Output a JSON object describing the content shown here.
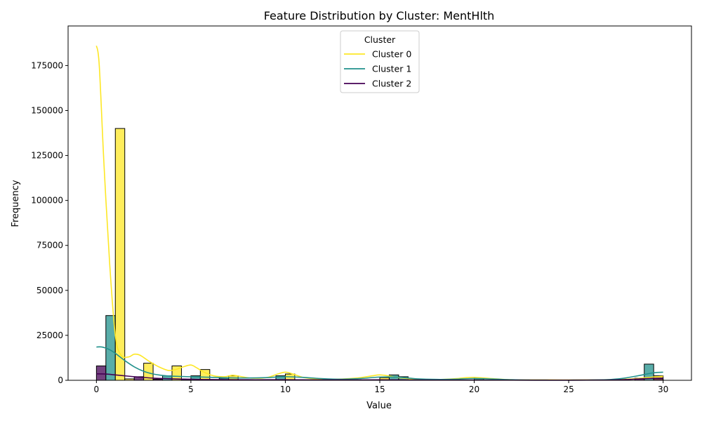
{
  "chart_data": {
    "type": "bar",
    "title": "Feature Distribution by Cluster: MentHlth",
    "xlabel": "Value",
    "ylabel": "Frequency",
    "xlim": [
      -1.5,
      31.5
    ],
    "ylim": [
      0,
      197000
    ],
    "xticks": [
      0,
      5,
      10,
      15,
      20,
      25,
      30
    ],
    "yticks": [
      0,
      25000,
      50000,
      75000,
      100000,
      125000,
      150000,
      175000
    ],
    "grid": false,
    "legend": {
      "title": "Cluster",
      "placement": "top-center",
      "entries": [
        "Cluster 0",
        "Cluster 1",
        "Cluster 2"
      ]
    },
    "colors": {
      "Cluster 0": "#fde725",
      "Cluster 1": "#21918c",
      "Cluster 2": "#440154"
    },
    "bars": [
      {
        "series": "Cluster 2",
        "x0": 0.0,
        "x1": 0.5,
        "value": 8000
      },
      {
        "series": "Cluster 1",
        "x0": 0.5,
        "x1": 1.0,
        "value": 36000
      },
      {
        "series": "Cluster 0",
        "x0": 1.0,
        "x1": 1.5,
        "value": 140000
      },
      {
        "series": "Cluster 0",
        "x0": 1.5,
        "x1": 2.0,
        "value": 800
      },
      {
        "series": "Cluster 2",
        "x0": 2.0,
        "x1": 2.5,
        "value": 2000
      },
      {
        "series": "Cluster 0",
        "x0": 2.5,
        "x1": 3.0,
        "value": 9500
      },
      {
        "series": "Cluster 2",
        "x0": 3.0,
        "x1": 3.5,
        "value": 600
      },
      {
        "series": "Cluster 1",
        "x0": 3.5,
        "x1": 4.0,
        "value": 2500
      },
      {
        "series": "Cluster 0",
        "x0": 4.0,
        "x1": 4.5,
        "value": 8000
      },
      {
        "series": "Cluster 2",
        "x0": 4.5,
        "x1": 5.0,
        "value": 500
      },
      {
        "series": "Cluster 1",
        "x0": 5.0,
        "x1": 5.5,
        "value": 2500
      },
      {
        "series": "Cluster 0",
        "x0": 5.5,
        "x1": 6.0,
        "value": 6000
      },
      {
        "series": "Cluster 2",
        "x0": 6.0,
        "x1": 6.5,
        "value": 400
      },
      {
        "series": "Cluster 1",
        "x0": 6.5,
        "x1": 7.0,
        "value": 1200
      },
      {
        "series": "Cluster 0",
        "x0": 7.0,
        "x1": 7.5,
        "value": 2500
      },
      {
        "series": "Cluster 1",
        "x0": 9.5,
        "x1": 10.0,
        "value": 2500
      },
      {
        "series": "Cluster 0",
        "x0": 10.0,
        "x1": 10.5,
        "value": 3500
      },
      {
        "series": "Cluster 2",
        "x0": 10.5,
        "x1": 11.0,
        "value": 300
      },
      {
        "series": "Cluster 0",
        "x0": 15.0,
        "x1": 15.5,
        "value": 1500
      },
      {
        "series": "Cluster 1",
        "x0": 15.5,
        "x1": 16.0,
        "value": 3000
      },
      {
        "series": "Cluster 1",
        "x0": 16.0,
        "x1": 16.5,
        "value": 2000
      },
      {
        "series": "Cluster 0",
        "x0": 20.0,
        "x1": 20.5,
        "value": 1200
      },
      {
        "series": "Cluster 1",
        "x0": 20.0,
        "x1": 20.5,
        "value": 1000
      },
      {
        "series": "Cluster 2",
        "x0": 28.5,
        "x1": 29.0,
        "value": 1200
      },
      {
        "series": "Cluster 1",
        "x0": 29.0,
        "x1": 29.5,
        "value": 9000
      },
      {
        "series": "Cluster 0",
        "x0": 29.5,
        "x1": 30.0,
        "value": 2500
      },
      {
        "series": "Cluster 2",
        "x0": 29.5,
        "x1": 30.0,
        "value": 1000
      }
    ],
    "kde_series": [
      {
        "name": "Cluster 0",
        "x": [
          0,
          0.15,
          0.4,
          0.7,
          1.0,
          1.3,
          1.7,
          2.0,
          2.3,
          2.8,
          3.3,
          3.8,
          4.2,
          4.6,
          5.0,
          5.3,
          5.7,
          6.2,
          6.8,
          7.2,
          7.6,
          8.2,
          9.0,
          9.6,
          10.0,
          10.4,
          11.0,
          12.0,
          13.0,
          14.0,
          14.6,
          15.0,
          15.5,
          16.0,
          17.0,
          18.0,
          19.0,
          19.6,
          20.0,
          20.5,
          21.0,
          22.0,
          24.0,
          26.0,
          27.5,
          28.5,
          29.2,
          29.7,
          30.0
        ],
        "y": [
          186000,
          175000,
          120000,
          65000,
          25000,
          14000,
          13000,
          14500,
          14000,
          10500,
          7500,
          5500,
          6000,
          7500,
          8500,
          7000,
          4500,
          2500,
          2000,
          2800,
          2200,
          1200,
          1500,
          3500,
          4500,
          3500,
          1500,
          600,
          700,
          1500,
          2500,
          3000,
          2400,
          1500,
          500,
          400,
          900,
          1500,
          1600,
          1300,
          900,
          300,
          200,
          200,
          400,
          900,
          1600,
          2000,
          2200
        ]
      },
      {
        "name": "Cluster 1",
        "x": [
          0,
          0.3,
          0.7,
          1.0,
          1.5,
          2.0,
          2.5,
          3.0,
          3.5,
          4.0,
          5.0,
          6.0,
          7.0,
          8.0,
          9.0,
          10.0,
          11.0,
          12.0,
          13.0,
          14.0,
          15.0,
          16.0,
          17.0,
          18.0,
          19.0,
          20.0,
          21.0,
          22.0,
          23.0,
          24.0,
          25.0,
          26.0,
          27.0,
          27.5,
          28.0,
          28.5,
          29.0,
          29.5,
          30.0
        ],
        "y": [
          18500,
          18500,
          17000,
          15000,
          11000,
          7500,
          5000,
          3500,
          2700,
          2300,
          2000,
          1700,
          1400,
          1300,
          1500,
          2000,
          1600,
          900,
          600,
          1000,
          1800,
          1700,
          800,
          500,
          600,
          1000,
          700,
          300,
          150,
          100,
          100,
          150,
          300,
          700,
          1300,
          2200,
          3200,
          4200,
          4500
        ]
      },
      {
        "name": "Cluster 2",
        "x": [
          0,
          0.5,
          1.0,
          2.0,
          3.0,
          4.0,
          5.0,
          6.0,
          8.0,
          10.0,
          12.0,
          15.0,
          18.0,
          20.0,
          22.0,
          25.0,
          27.0,
          28.0,
          29.0,
          29.5,
          30.0
        ],
        "y": [
          3600,
          3500,
          3000,
          2000,
          1200,
          800,
          600,
          400,
          300,
          300,
          200,
          250,
          150,
          150,
          100,
          80,
          150,
          400,
          900,
          1100,
          1200
        ]
      }
    ]
  }
}
